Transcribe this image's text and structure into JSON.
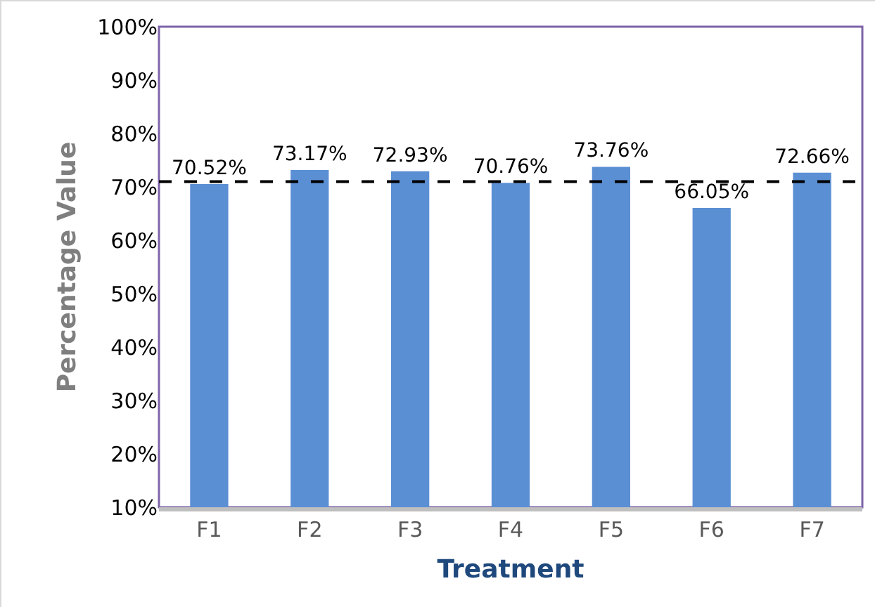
{
  "chart_data": {
    "type": "bar",
    "xlabel": "Treatment",
    "ylabel": "Percentage Value",
    "categories": [
      "F1",
      "F2",
      "F3",
      "F4",
      "F5",
      "F6",
      "F7"
    ],
    "values": [
      70.52,
      73.17,
      72.93,
      70.76,
      73.76,
      66.05,
      72.66
    ],
    "value_labels": [
      "70.52%",
      "73.17%",
      "72.93%",
      "70.76%",
      "73.76%",
      "66.05%",
      "72.66%"
    ],
    "color": "#5b8fd4",
    "ylim": [
      10,
      100
    ],
    "yticks": [
      {
        "value": 10,
        "label": "10%"
      },
      {
        "value": 20,
        "label": "20%"
      },
      {
        "value": 30,
        "label": "30%"
      },
      {
        "value": 40,
        "label": "40%"
      },
      {
        "value": 50,
        "label": "50%"
      },
      {
        "value": 60,
        "label": "60%"
      },
      {
        "value": 70,
        "label": "70%"
      },
      {
        "value": 80,
        "label": "80%"
      },
      {
        "value": 90,
        "label": "90%"
      },
      {
        "value": 100,
        "label": "100%"
      }
    ],
    "ref_lines": [
      {
        "axis": "y",
        "value": 71,
        "color": "#000000",
        "line_style": "dashed"
      }
    ],
    "grid": false
  }
}
